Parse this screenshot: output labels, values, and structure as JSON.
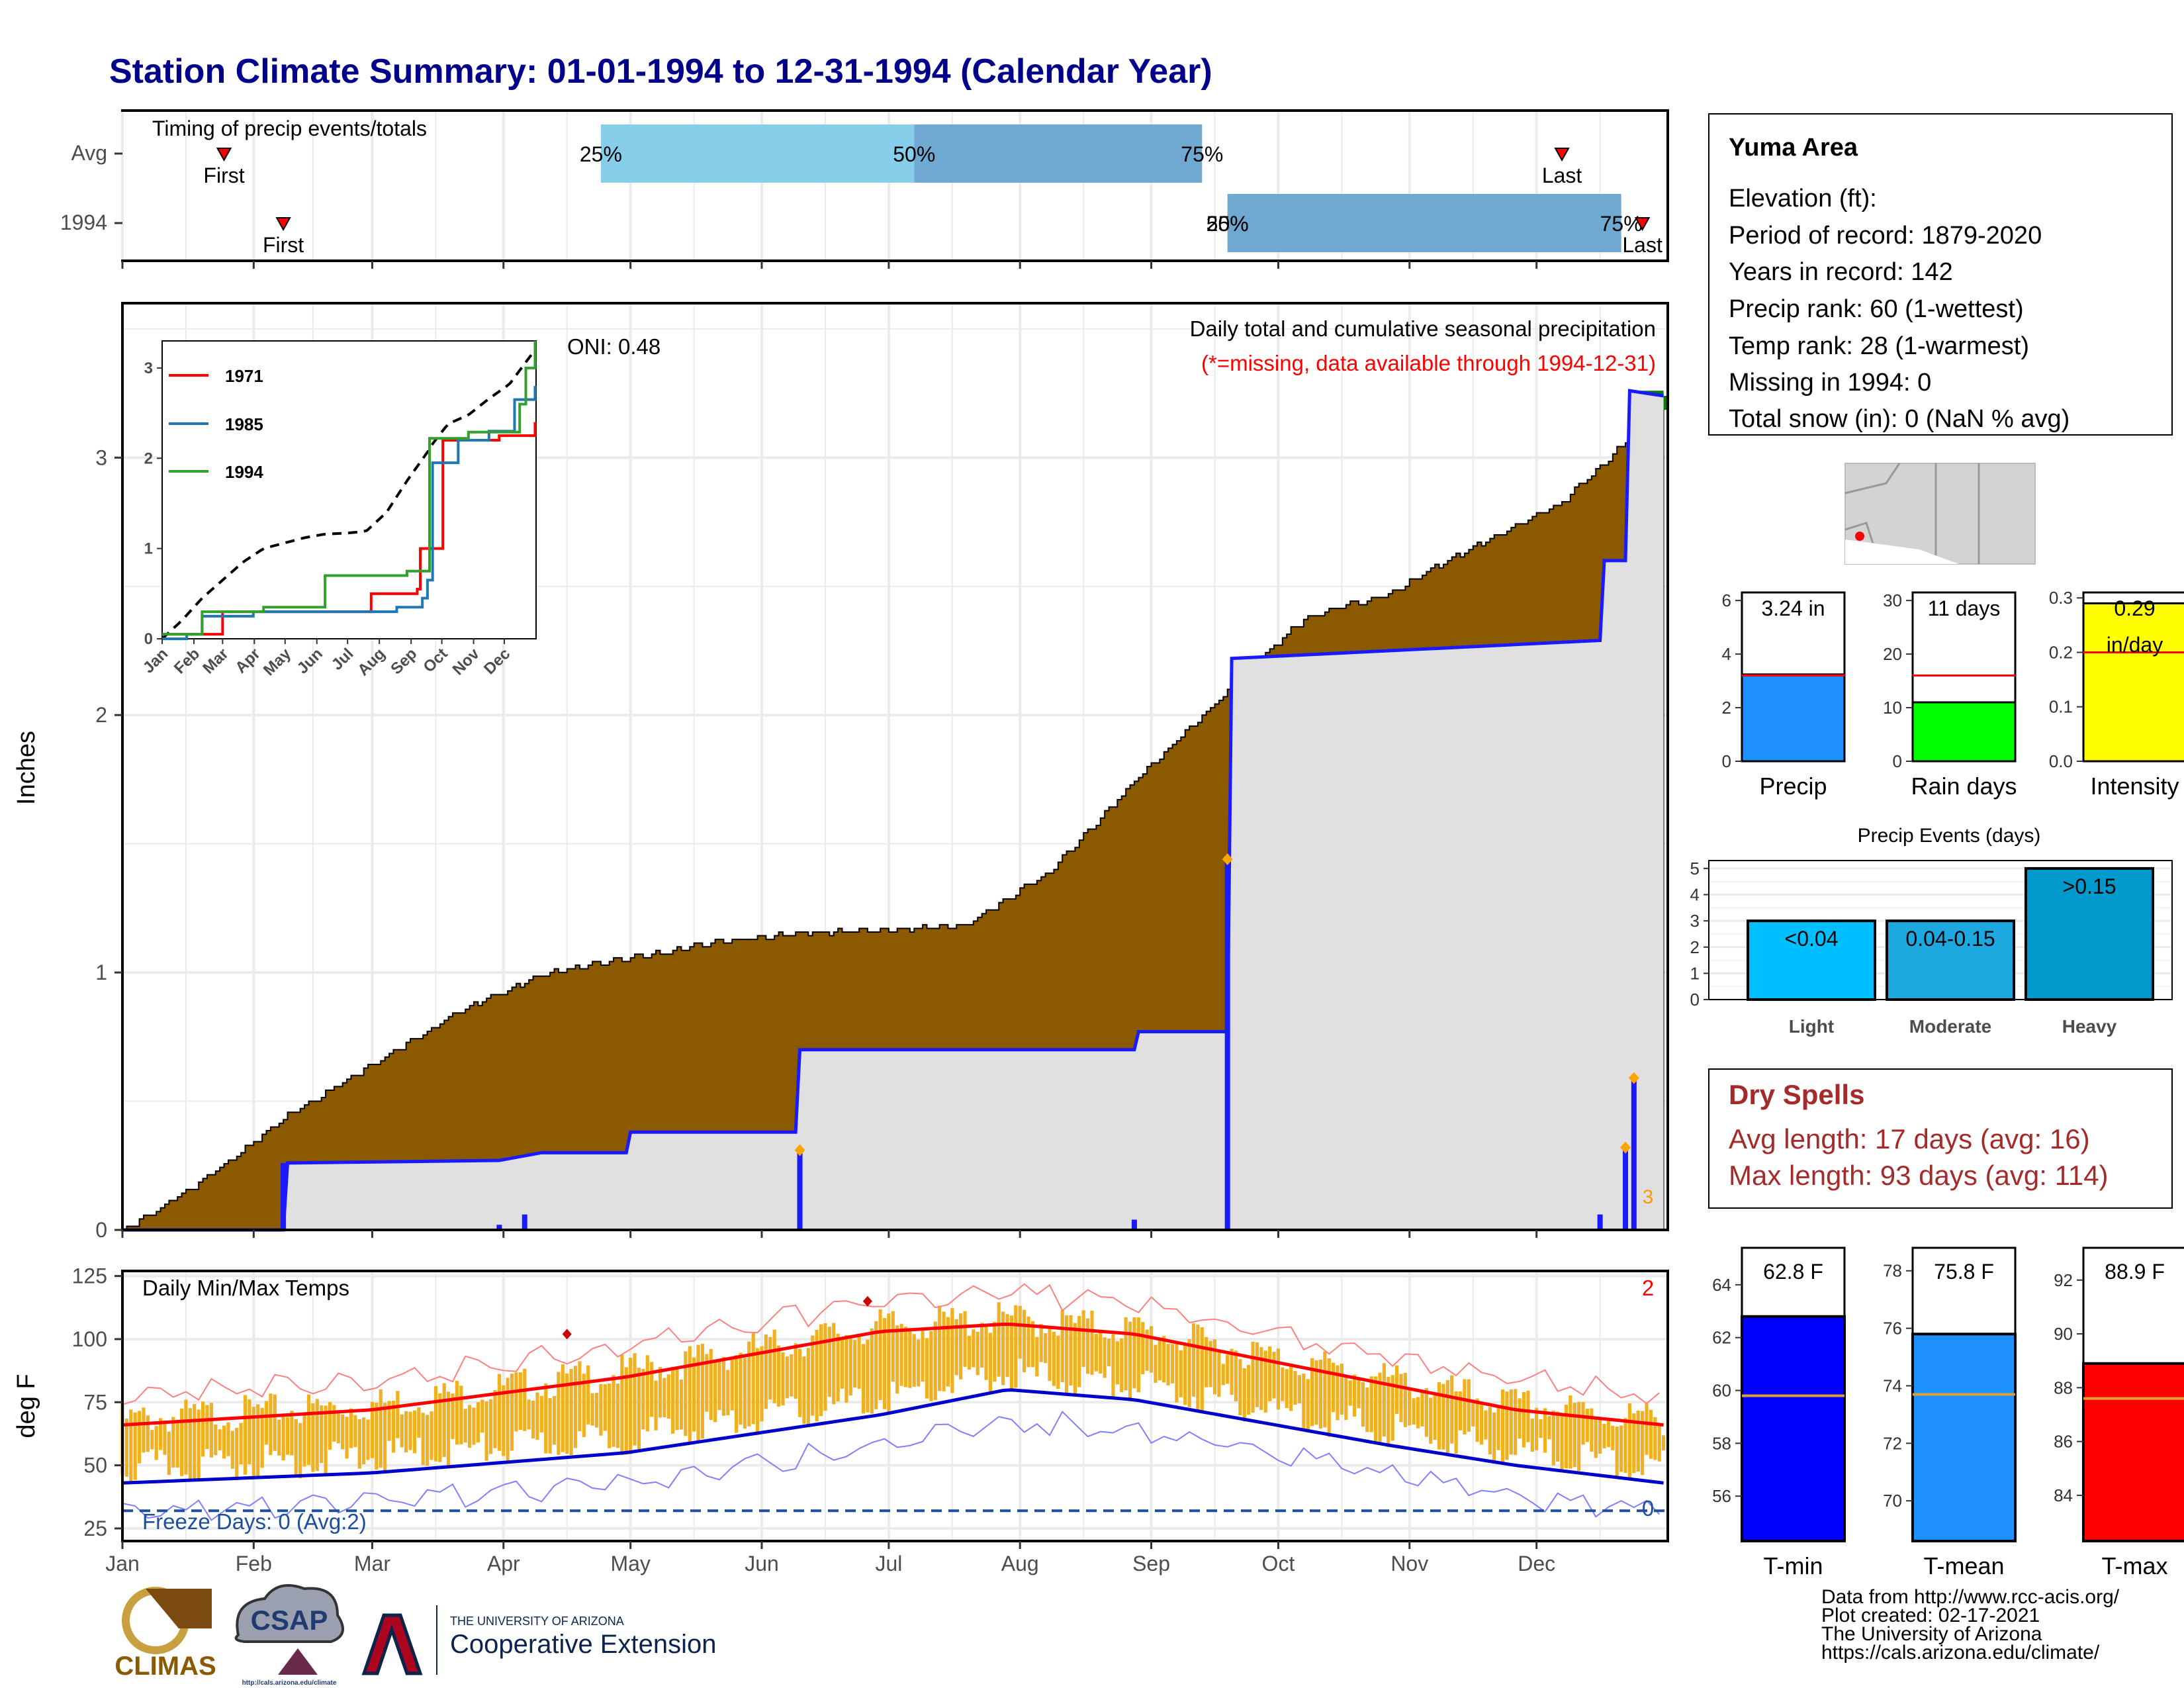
{
  "title": "Station Climate Summary: 01-01-1994 to 12-31-1994 (Calendar Year)",
  "months": [
    "Jan",
    "Feb",
    "Mar",
    "Apr",
    "May",
    "Jun",
    "Jul",
    "Aug",
    "Sep",
    "Oct",
    "Nov",
    "Dec"
  ],
  "timing": {
    "label": "Timing of precip events/totals",
    "rows": [
      {
        "name": "Avg",
        "first_label": "First",
        "last_label": "Last",
        "first_day": 25,
        "last_day": 341,
        "p25_day": 114,
        "p50_day": 188,
        "p75_day": 256,
        "p25_label": "25%",
        "p50_label": "50%",
        "p75_label": "75%"
      },
      {
        "name": "1994",
        "first_label": "First",
        "last_label": "Last",
        "first_day": 39,
        "last_day": 360,
        "p25_day": 262,
        "p50_day": 262,
        "p75_day": 355,
        "p25_label": "25%",
        "p50_label": "50%",
        "p75_label": "75%"
      }
    ]
  },
  "station": {
    "name": "Yuma Area",
    "lines": [
      "Elevation (ft):",
      "Period of record: 1879-2020",
      "Years in record: 142",
      "Precip rank: 60 (1-wettest)",
      "Temp rank: 28 (1-warmest)",
      "Missing in 1994: 0",
      "Total snow (in): 0 (NaN % avg)"
    ]
  },
  "precip_panel": {
    "ylabel": "Inches",
    "title": "Daily total and cumulative seasonal precipitation",
    "note": "(*=missing, data available through 1994-12-31)",
    "oni": "ONI: 0.48",
    "counter_label": "3",
    "yticks": [
      0,
      1,
      2,
      3
    ],
    "ylim": [
      0,
      3.6
    ]
  },
  "inset": {
    "legend": [
      "1971",
      "1985",
      "1994"
    ],
    "yticks": [
      0,
      1,
      2,
      3
    ],
    "ylim": [
      0,
      3.3
    ]
  },
  "temp_panel": {
    "ylabel": "deg F",
    "title": "Daily Min/Max Temps",
    "freeze_label": "Freeze Days: 0 (Avg:2)",
    "record_count_high": "2",
    "record_count_low": "0",
    "yticks": [
      25,
      50,
      75,
      100,
      125
    ],
    "ylim": [
      20,
      127
    ],
    "freeze_line": 32
  },
  "precip_bars": [
    {
      "label": "Precip",
      "value_label": "3.24 in",
      "value": 3.24,
      "avg": 3.2,
      "ymax": 6.3,
      "ticks": [
        0,
        2,
        4,
        6
      ],
      "color": "#1e90ff"
    },
    {
      "label": "Rain days",
      "value_label": "11 days",
      "value": 11,
      "avg": 16,
      "ymax": 31.5,
      "ticks": [
        0,
        10,
        20,
        30
      ],
      "color": "#00ff00"
    },
    {
      "label": "Intensity",
      "value_label": "0.29",
      "value_label2": "in/day",
      "value": 0.29,
      "avg": 0.2,
      "ymax": 0.31,
      "ticks": [
        "0.0",
        "0.1",
        "0.2",
        "0.3"
      ],
      "color": "#ffff00"
    }
  ],
  "events": {
    "title": "Precip Events (days)",
    "categories": [
      "Light",
      "Moderate",
      "Heavy"
    ],
    "bar_labels": [
      "<0.04",
      "0.04-0.15",
      ">0.15"
    ],
    "values": [
      3,
      3,
      5
    ],
    "yticks": [
      0,
      1,
      2,
      3,
      4,
      5
    ],
    "ymax": 5.3
  },
  "dry_spells": {
    "title": "Dry Spells",
    "avg_line": "Avg length: 17 days (avg: 16)",
    "max_line": "Max length: 93 days (avg: 114)"
  },
  "temp_bars": [
    {
      "label": "T-min",
      "value_label": "62.8 F",
      "value": 62.8,
      "avg": 59.8,
      "ymin": 54.3,
      "ymax": 65.4,
      "ticks": [
        56,
        58,
        60,
        62,
        64
      ],
      "color": "#0000ff"
    },
    {
      "label": "T-mean",
      "value_label": "75.8 F",
      "value": 75.8,
      "avg": 73.7,
      "ymin": 68.6,
      "ymax": 78.8,
      "ticks": [
        70,
        72,
        74,
        76,
        78
      ],
      "color": "#1e90ff"
    },
    {
      "label": "T-max",
      "value_label": "88.9 F",
      "value": 88.9,
      "avg": 87.6,
      "ymin": 82.3,
      "ymax": 93.2,
      "ticks": [
        84,
        86,
        88,
        90,
        92
      ],
      "color": "#ff0000"
    }
  ],
  "footer": {
    "lines": [
      "Data from http://www.rcc-acis.org/",
      "Plot created: 02-17-2021",
      "The University of Arizona",
      "https://cals.arizona.edu/climate/"
    ],
    "logo_climas": "CLIMAS",
    "logo_csap": "CSAP",
    "logo_csap_url": "http://cals.arizona.edu/climate",
    "ua_small": "THE UNIVERSITY OF ARIZONA",
    "ua_big": "Cooperative Extension"
  },
  "colors": {
    "title": "#00008b",
    "dry": "#a52a2a",
    "brown": "#8b5a00",
    "light_blue": "#87ceeb",
    "mid_blue": "#6fa8d0",
    "gold": "#f0b020"
  },
  "chart_data": [
    {
      "type": "area",
      "title": "Daily total and cumulative seasonal precipitation",
      "ylabel": "Inches",
      "ylim": [
        0,
        3.6
      ],
      "series": [
        {
          "name": "1994",
          "x": [
            1,
            39,
            40,
            90,
            100,
            120,
            121,
            160,
            161,
            240,
            241,
            262,
            263,
            350,
            351,
            356,
            357,
            365
          ],
          "y": [
            0,
            0,
            0.26,
            0.27,
            0.3,
            0.3,
            0.38,
            0.38,
            0.7,
            0.7,
            0.77,
            0.77,
            2.22,
            2.29,
            2.6,
            2.6,
            3.26,
            3.24
          ]
        },
        {
          "x": [
            1,
            20,
            40,
            60,
            80,
            100,
            120,
            140,
            160,
            180,
            200,
            220,
            240,
            262,
            263,
            280,
            300,
            320,
            340,
            355,
            365
          ],
          "y": [
            0,
            0.2,
            0.45,
            0.65,
            0.85,
            1.0,
            1.06,
            1.12,
            1.16,
            1.17,
            1.19,
            1.4,
            1.75,
            2.1,
            2.13,
            2.38,
            2.48,
            2.66,
            2.82,
            3.05,
            3.2
          ]
        }
      ],
      "daily_totals": {
        "day": [
          39,
          90,
          96,
          161,
          240,
          262,
          350,
          356,
          358
        ],
        "inches": [
          0.26,
          0.02,
          0.06,
          0.31,
          0.04,
          1.44,
          0.06,
          0.32,
          0.59
        ]
      }
    },
    {
      "type": "line",
      "title": "Daily Min/Max Temps",
      "ylabel": "deg F",
      "ylim": [
        20,
        127
      ],
      "series": [
        {
          "x": [
            1,
            60,
            120,
            180,
            210,
            240,
            300,
            330,
            365
          ],
          "y": [
            66,
            72,
            85,
            103,
            106,
            102,
            82,
            72,
            66
          ]
        },
        {
          "x": [
            1,
            60,
            120,
            180,
            210,
            240,
            300,
            330,
            365
          ],
          "y": [
            43,
            47,
            55,
            70,
            80,
            76,
            58,
            50,
            43
          ]
        }
      ]
    }
  ]
}
